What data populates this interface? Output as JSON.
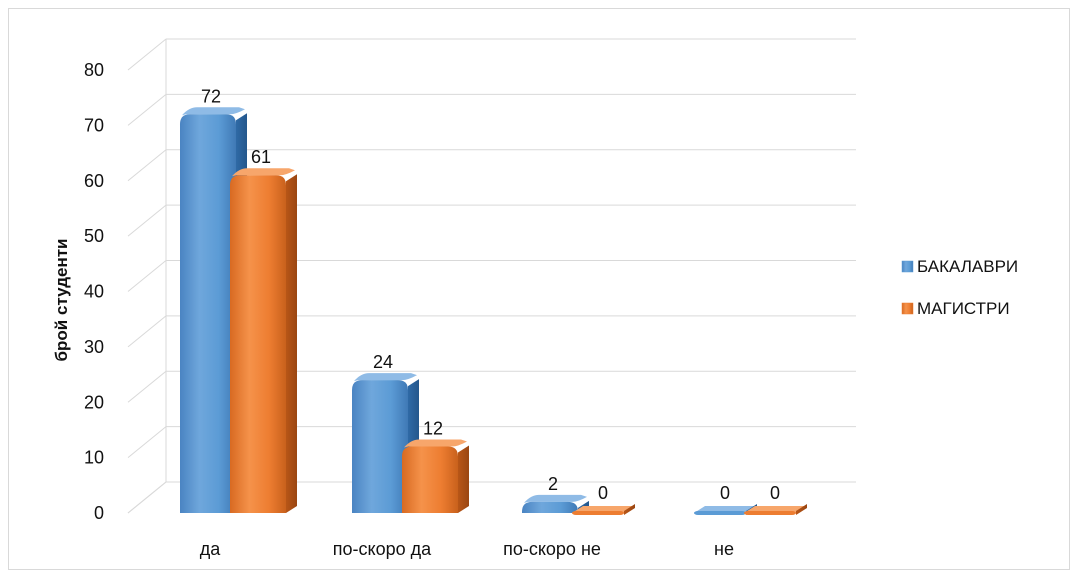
{
  "chart_data": {
    "type": "bar",
    "categories": [
      "да",
      "по-скоро да",
      "по-скоро не",
      "не"
    ],
    "series": [
      {
        "name": "БАКАЛАВРИ",
        "values": [
          72,
          24,
          2,
          0
        ],
        "color": "#5b9bd5"
      },
      {
        "name": "МАГИСТРИ",
        "values": [
          61,
          12,
          0,
          0
        ],
        "color": "#ed7d31"
      }
    ],
    "title": "",
    "xlabel": "",
    "ylabel": "брой студенти",
    "ylim": [
      0,
      80
    ],
    "yticks": [
      0,
      10,
      20,
      30,
      40,
      50,
      60,
      70,
      80
    ],
    "grid": true,
    "legend_position": "right",
    "style": "3d-rounded-columns"
  }
}
